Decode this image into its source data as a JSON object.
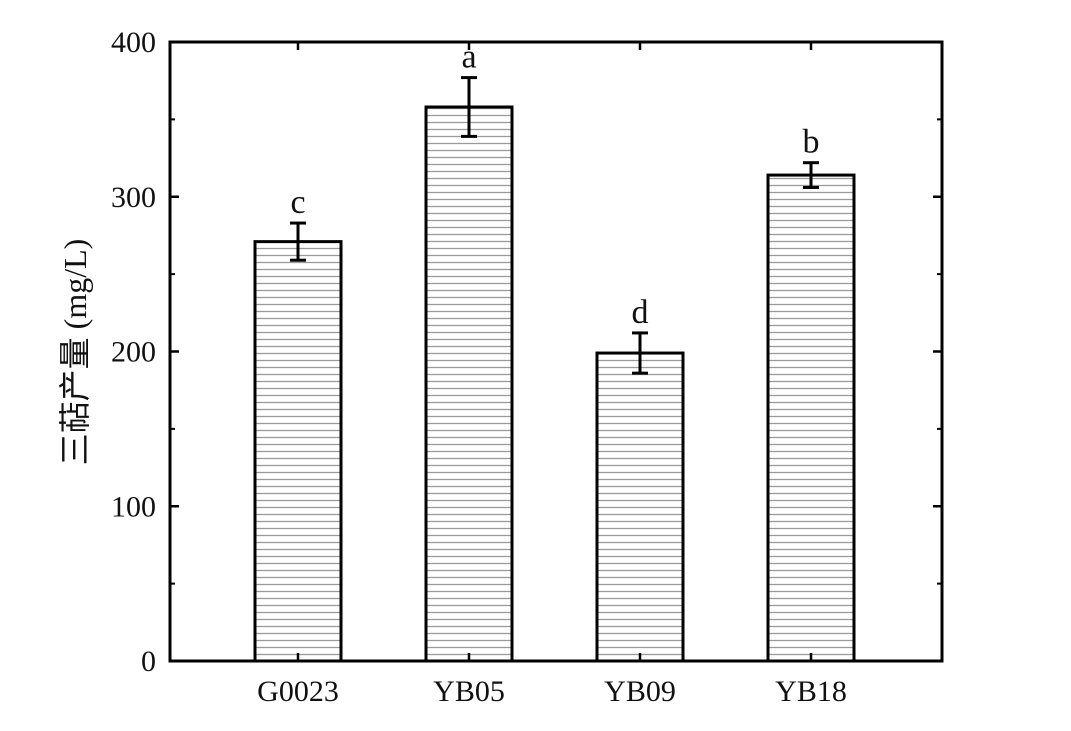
{
  "chart_data": {
    "type": "bar",
    "title": "",
    "xlabel": "",
    "ylabel": "三萜产量 (mg/L)",
    "ylim": [
      0,
      400
    ],
    "yticks": [
      0,
      100,
      200,
      300,
      400
    ],
    "grid": false,
    "categories": [
      "G0023",
      "YB05",
      "YB09",
      "YB18"
    ],
    "values": [
      271,
      358,
      199,
      314
    ],
    "errors": [
      12,
      19,
      13,
      8
    ],
    "significance_labels": [
      "c",
      "a",
      "d",
      "b"
    ],
    "bar_fill": "horizontal-hatch",
    "bar_color": "#000000",
    "hatch_color": "#9a9a9a"
  }
}
